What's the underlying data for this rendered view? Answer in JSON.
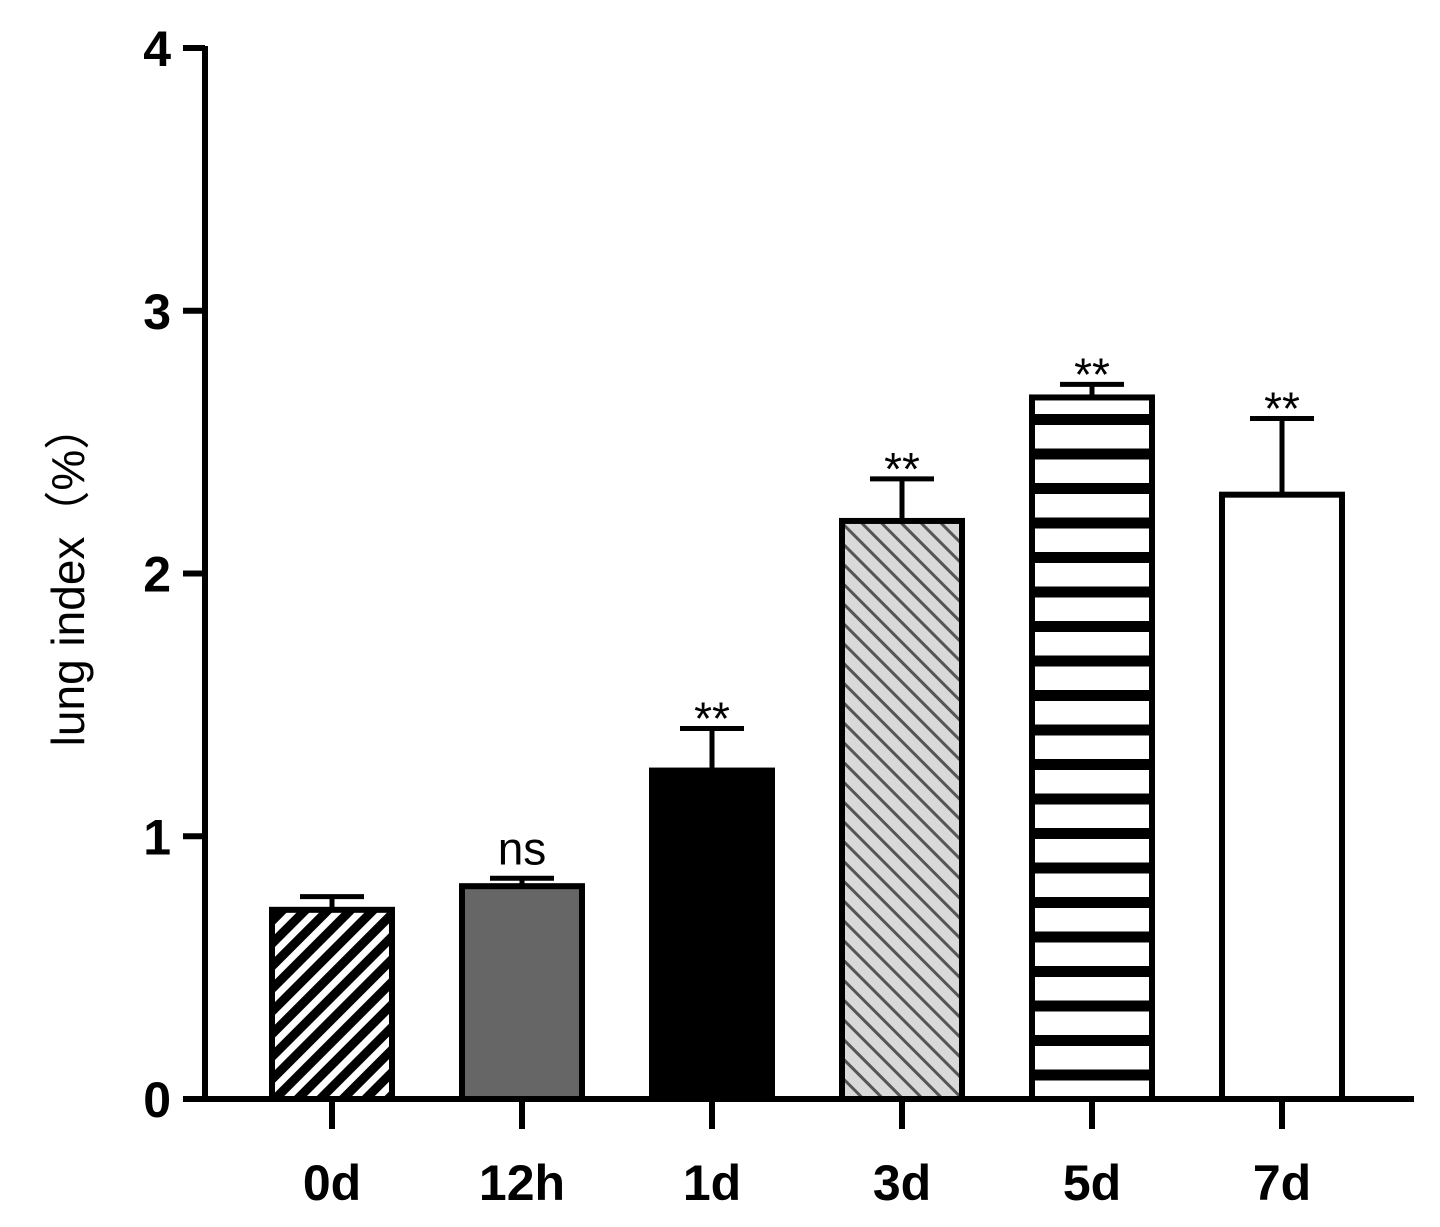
{
  "chart_data": {
    "type": "bar",
    "title": "",
    "xlabel": "",
    "ylabel": "lung index（%）",
    "ylim": [
      0,
      4
    ],
    "yticks": [
      "0",
      "1",
      "2",
      "3",
      "4"
    ],
    "categories": [
      "0d",
      "12h",
      "1d",
      "3d",
      "5d",
      "7d"
    ],
    "values": [
      0.72,
      0.81,
      1.25,
      2.2,
      2.67,
      2.3
    ],
    "error": [
      0.05,
      0.03,
      0.16,
      0.16,
      0.05,
      0.29
    ],
    "annotations": [
      "",
      "ns",
      "**",
      "**",
      "**",
      "**"
    ],
    "patterns": [
      "diagonal-dark",
      "solid-gray",
      "solid-black",
      "diagonal-light",
      "horizontal-stripes",
      "solid-white"
    ],
    "colors": {
      "axis": "#000000",
      "gray_fill": "#666666",
      "black_fill": "#000000",
      "light_fill": "#d9d9d9",
      "white_fill": "#ffffff"
    },
    "grid": false,
    "legend": "none"
  }
}
